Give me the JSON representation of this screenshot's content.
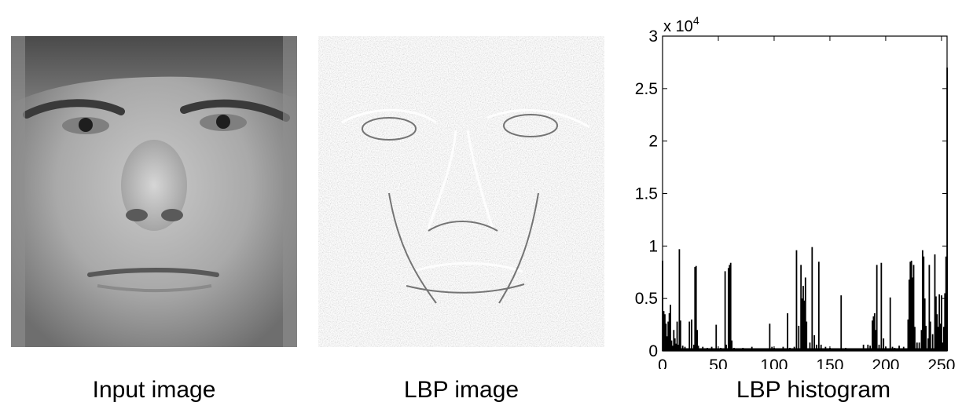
{
  "panels": {
    "input_caption": "Input image",
    "lbp_caption": "LBP image",
    "hist_caption": "LBP histogram"
  },
  "chart_data": {
    "type": "bar",
    "x_ticks": [
      "0",
      "50",
      "100",
      "150",
      "200",
      "250"
    ],
    "y_ticks": [
      "0",
      "0.5",
      "1",
      "1.5",
      "2",
      "2.5",
      "3"
    ],
    "y_multiplier_base": "x 10",
    "y_multiplier_exp": "4",
    "xlim": [
      0,
      255
    ],
    "ylim": [
      0,
      30000
    ],
    "bars": [
      {
        "x": 0,
        "y": 8600
      },
      {
        "x": 1,
        "y": 3800
      },
      {
        "x": 2,
        "y": 3500
      },
      {
        "x": 3,
        "y": 2600
      },
      {
        "x": 4,
        "y": 1400
      },
      {
        "x": 5,
        "y": 2800
      },
      {
        "x": 6,
        "y": 3600
      },
      {
        "x": 7,
        "y": 4400
      },
      {
        "x": 8,
        "y": 1000
      },
      {
        "x": 9,
        "y": 500
      },
      {
        "x": 10,
        "y": 2000
      },
      {
        "x": 11,
        "y": 1200
      },
      {
        "x": 12,
        "y": 700
      },
      {
        "x": 13,
        "y": 2800
      },
      {
        "x": 14,
        "y": 600
      },
      {
        "x": 15,
        "y": 9700
      },
      {
        "x": 16,
        "y": 2900
      },
      {
        "x": 18,
        "y": 500
      },
      {
        "x": 20,
        "y": 400
      },
      {
        "x": 24,
        "y": 2800
      },
      {
        "x": 26,
        "y": 3000
      },
      {
        "x": 28,
        "y": 600
      },
      {
        "x": 29,
        "y": 8000
      },
      {
        "x": 30,
        "y": 8100
      },
      {
        "x": 31,
        "y": 2000
      },
      {
        "x": 32,
        "y": 500
      },
      {
        "x": 36,
        "y": 400
      },
      {
        "x": 40,
        "y": 300
      },
      {
        "x": 44,
        "y": 400
      },
      {
        "x": 48,
        "y": 2500
      },
      {
        "x": 52,
        "y": 300
      },
      {
        "x": 56,
        "y": 7600
      },
      {
        "x": 57,
        "y": 600
      },
      {
        "x": 59,
        "y": 7900
      },
      {
        "x": 60,
        "y": 8200
      },
      {
        "x": 61,
        "y": 8400
      },
      {
        "x": 62,
        "y": 1000
      },
      {
        "x": 64,
        "y": 300
      },
      {
        "x": 68,
        "y": 200
      },
      {
        "x": 72,
        "y": 300
      },
      {
        "x": 76,
        "y": 200
      },
      {
        "x": 80,
        "y": 400
      },
      {
        "x": 84,
        "y": 200
      },
      {
        "x": 88,
        "y": 100
      },
      {
        "x": 92,
        "y": 200
      },
      {
        "x": 96,
        "y": 2600
      },
      {
        "x": 98,
        "y": 400
      },
      {
        "x": 100,
        "y": 300
      },
      {
        "x": 104,
        "y": 200
      },
      {
        "x": 108,
        "y": 400
      },
      {
        "x": 112,
        "y": 3600
      },
      {
        "x": 114,
        "y": 300
      },
      {
        "x": 118,
        "y": 400
      },
      {
        "x": 120,
        "y": 9600
      },
      {
        "x": 122,
        "y": 2400
      },
      {
        "x": 124,
        "y": 8200
      },
      {
        "x": 125,
        "y": 5000
      },
      {
        "x": 126,
        "y": 6200
      },
      {
        "x": 127,
        "y": 4800
      },
      {
        "x": 128,
        "y": 7000
      },
      {
        "x": 129,
        "y": 2800
      },
      {
        "x": 132,
        "y": 800
      },
      {
        "x": 134,
        "y": 9900
      },
      {
        "x": 136,
        "y": 1500
      },
      {
        "x": 138,
        "y": 600
      },
      {
        "x": 140,
        "y": 8500
      },
      {
        "x": 142,
        "y": 600
      },
      {
        "x": 146,
        "y": 400
      },
      {
        "x": 150,
        "y": 300
      },
      {
        "x": 154,
        "y": 200
      },
      {
        "x": 160,
        "y": 5300
      },
      {
        "x": 164,
        "y": 300
      },
      {
        "x": 168,
        "y": 200
      },
      {
        "x": 172,
        "y": 200
      },
      {
        "x": 176,
        "y": 200
      },
      {
        "x": 180,
        "y": 600
      },
      {
        "x": 184,
        "y": 600
      },
      {
        "x": 186,
        "y": 500
      },
      {
        "x": 188,
        "y": 2900
      },
      {
        "x": 189,
        "y": 3300
      },
      {
        "x": 190,
        "y": 3600
      },
      {
        "x": 191,
        "y": 2000
      },
      {
        "x": 192,
        "y": 8200
      },
      {
        "x": 194,
        "y": 600
      },
      {
        "x": 196,
        "y": 8400
      },
      {
        "x": 198,
        "y": 1200
      },
      {
        "x": 200,
        "y": 400
      },
      {
        "x": 204,
        "y": 5100
      },
      {
        "x": 206,
        "y": 400
      },
      {
        "x": 208,
        "y": 300
      },
      {
        "x": 212,
        "y": 500
      },
      {
        "x": 216,
        "y": 400
      },
      {
        "x": 220,
        "y": 3000
      },
      {
        "x": 221,
        "y": 6800
      },
      {
        "x": 222,
        "y": 8500
      },
      {
        "x": 223,
        "y": 8600
      },
      {
        "x": 224,
        "y": 7000
      },
      {
        "x": 225,
        "y": 8200
      },
      {
        "x": 226,
        "y": 2300
      },
      {
        "x": 228,
        "y": 800
      },
      {
        "x": 230,
        "y": 800
      },
      {
        "x": 232,
        "y": 2000
      },
      {
        "x": 233,
        "y": 9600
      },
      {
        "x": 234,
        "y": 9000
      },
      {
        "x": 235,
        "y": 5000
      },
      {
        "x": 236,
        "y": 2400
      },
      {
        "x": 238,
        "y": 1200
      },
      {
        "x": 239,
        "y": 8200
      },
      {
        "x": 240,
        "y": 2800
      },
      {
        "x": 242,
        "y": 1600
      },
      {
        "x": 244,
        "y": 9200
      },
      {
        "x": 245,
        "y": 5200
      },
      {
        "x": 246,
        "y": 3500
      },
      {
        "x": 247,
        "y": 2300
      },
      {
        "x": 248,
        "y": 5400
      },
      {
        "x": 249,
        "y": 2600
      },
      {
        "x": 250,
        "y": 5300
      },
      {
        "x": 251,
        "y": 800
      },
      {
        "x": 252,
        "y": 2300
      },
      {
        "x": 253,
        "y": 5500
      },
      {
        "x": 254,
        "y": 9000
      },
      {
        "x": 255,
        "y": 27000
      }
    ],
    "bar_color": "#000000",
    "grid": false
  }
}
